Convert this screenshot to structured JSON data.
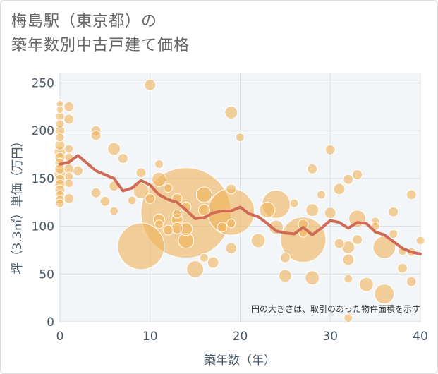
{
  "title_lines": [
    "梅島駅（東京都）の",
    "築年数別中古戸建て価格"
  ],
  "chart_data": {
    "type": "scatter",
    "title": "梅島駅（東京都）の築年数別中古戸建て価格",
    "xlabel": "築年数（年）",
    "ylabel": "坪（3.3㎡）単価（万円）",
    "xlim": [
      0,
      40
    ],
    "ylim": [
      0,
      260
    ],
    "xticks": [
      0,
      10,
      20,
      30,
      40
    ],
    "yticks": [
      0,
      50,
      100,
      150,
      200,
      250
    ],
    "grid": true,
    "note": "円の大きさは、取引のあった物件面積を示す",
    "colors": {
      "bubble": "#f0b45a",
      "line": "#d06a55",
      "plot_bg": "#f3f6f8",
      "grid": "#d6dde3"
    },
    "points": [
      {
        "x": 0,
        "y": 228,
        "s": 5
      },
      {
        "x": 0,
        "y": 222,
        "s": 5
      },
      {
        "x": 0,
        "y": 215,
        "s": 6
      },
      {
        "x": 0,
        "y": 207,
        "s": 6
      },
      {
        "x": 0,
        "y": 200,
        "s": 7
      },
      {
        "x": 0,
        "y": 193,
        "s": 6
      },
      {
        "x": 0,
        "y": 185,
        "s": 7
      },
      {
        "x": 0,
        "y": 178,
        "s": 8
      },
      {
        "x": 0,
        "y": 172,
        "s": 7
      },
      {
        "x": 0,
        "y": 166,
        "s": 7
      },
      {
        "x": 0,
        "y": 160,
        "s": 7
      },
      {
        "x": 0,
        "y": 155,
        "s": 8
      },
      {
        "x": 0,
        "y": 149,
        "s": 7
      },
      {
        "x": 0,
        "y": 144,
        "s": 7
      },
      {
        "x": 0,
        "y": 138,
        "s": 7
      },
      {
        "x": 0,
        "y": 133,
        "s": 6
      },
      {
        "x": 0,
        "y": 128,
        "s": 6
      },
      {
        "x": 0,
        "y": 124,
        "s": 6
      },
      {
        "x": 1,
        "y": 225,
        "s": 7
      },
      {
        "x": 1,
        "y": 212,
        "s": 7
      },
      {
        "x": 1,
        "y": 181,
        "s": 6
      },
      {
        "x": 1,
        "y": 172,
        "s": 6
      },
      {
        "x": 1,
        "y": 160,
        "s": 7
      },
      {
        "x": 1,
        "y": 152,
        "s": 6
      },
      {
        "x": 1,
        "y": 145,
        "s": 6
      },
      {
        "x": 1,
        "y": 129,
        "s": 7
      },
      {
        "x": 2,
        "y": 158,
        "s": 7
      },
      {
        "x": 4,
        "y": 200,
        "s": 7
      },
      {
        "x": 4,
        "y": 195,
        "s": 7
      },
      {
        "x": 4,
        "y": 135,
        "s": 7
      },
      {
        "x": 5,
        "y": 126,
        "s": 7
      },
      {
        "x": 6,
        "y": 181,
        "s": 9
      },
      {
        "x": 6,
        "y": 142,
        "s": 7
      },
      {
        "x": 6,
        "y": 116,
        "s": 6
      },
      {
        "x": 7,
        "y": 171,
        "s": 7
      },
      {
        "x": 8,
        "y": 127,
        "s": 6
      },
      {
        "x": 9,
        "y": 156,
        "s": 7
      },
      {
        "x": 9,
        "y": 137,
        "s": 11
      },
      {
        "x": 9,
        "y": 79,
        "s": 33
      },
      {
        "x": 10,
        "y": 248,
        "s": 8
      },
      {
        "x": 10,
        "y": 129,
        "s": 7
      },
      {
        "x": 11,
        "y": 165,
        "s": 6
      },
      {
        "x": 11,
        "y": 149,
        "s": 10
      },
      {
        "x": 11,
        "y": 107,
        "s": 8
      },
      {
        "x": 11,
        "y": 102,
        "s": 6
      },
      {
        "x": 12,
        "y": 140,
        "s": 6
      },
      {
        "x": 12,
        "y": 96,
        "s": 7
      },
      {
        "x": 13,
        "y": 129,
        "s": 7
      },
      {
        "x": 13,
        "y": 113,
        "s": 6
      },
      {
        "x": 13,
        "y": 107,
        "s": 8
      },
      {
        "x": 13,
        "y": 98,
        "s": 8
      },
      {
        "x": 14,
        "y": 114,
        "s": 64
      },
      {
        "x": 14,
        "y": 120,
        "s": 7
      },
      {
        "x": 14,
        "y": 97,
        "s": 9
      },
      {
        "x": 14,
        "y": 85,
        "s": 11
      },
      {
        "x": 15,
        "y": 55,
        "s": 12
      },
      {
        "x": 16,
        "y": 133,
        "s": 11
      },
      {
        "x": 16,
        "y": 117,
        "s": 8
      },
      {
        "x": 16,
        "y": 67,
        "s": 6
      },
      {
        "x": 17,
        "y": 62,
        "s": 8
      },
      {
        "x": 18,
        "y": 99,
        "s": 7
      },
      {
        "x": 19,
        "y": 219,
        "s": 9
      },
      {
        "x": 19,
        "y": 139,
        "s": 7
      },
      {
        "x": 19,
        "y": 115,
        "s": 33
      },
      {
        "x": 19,
        "y": 103,
        "s": 6
      },
      {
        "x": 19,
        "y": 77,
        "s": 8
      },
      {
        "x": 20,
        "y": 193,
        "s": 6
      },
      {
        "x": 22,
        "y": 85,
        "s": 10
      },
      {
        "x": 23,
        "y": 117,
        "s": 11
      },
      {
        "x": 24,
        "y": 123,
        "s": 20
      },
      {
        "x": 24,
        "y": 99,
        "s": 10
      },
      {
        "x": 25,
        "y": 67,
        "s": 7
      },
      {
        "x": 25,
        "y": 48,
        "s": 9
      },
      {
        "x": 26,
        "y": 124,
        "s": 6
      },
      {
        "x": 27,
        "y": 86,
        "s": 32
      },
      {
        "x": 27,
        "y": 102,
        "s": 7
      },
      {
        "x": 27,
        "y": 93,
        "s": 6
      },
      {
        "x": 28,
        "y": 160,
        "s": 7
      },
      {
        "x": 28,
        "y": 117,
        "s": 9
      },
      {
        "x": 28,
        "y": 46,
        "s": 10
      },
      {
        "x": 29,
        "y": 133,
        "s": 6
      },
      {
        "x": 30,
        "y": 180,
        "s": 7
      },
      {
        "x": 30,
        "y": 114,
        "s": 8
      },
      {
        "x": 31,
        "y": 139,
        "s": 8
      },
      {
        "x": 31,
        "y": 82,
        "s": 7
      },
      {
        "x": 32,
        "y": 149,
        "s": 7
      },
      {
        "x": 32,
        "y": 78,
        "s": 9
      },
      {
        "x": 32,
        "y": 65,
        "s": 8
      },
      {
        "x": 32,
        "y": 45,
        "s": 6
      },
      {
        "x": 32,
        "y": 4,
        "s": 6
      },
      {
        "x": 33,
        "y": 154,
        "s": 7
      },
      {
        "x": 33,
        "y": 108,
        "s": 12
      },
      {
        "x": 33,
        "y": 86,
        "s": 7
      },
      {
        "x": 34,
        "y": 39,
        "s": 10
      },
      {
        "x": 35,
        "y": 105,
        "s": 6
      },
      {
        "x": 35,
        "y": 100,
        "s": 6
      },
      {
        "x": 36,
        "y": 78,
        "s": 16
      },
      {
        "x": 36,
        "y": 29,
        "s": 14
      },
      {
        "x": 37,
        "y": 115,
        "s": 7
      },
      {
        "x": 37,
        "y": 92,
        "s": 6
      },
      {
        "x": 38,
        "y": 74,
        "s": 6
      },
      {
        "x": 38,
        "y": 56,
        "s": 7
      },
      {
        "x": 39,
        "y": 133,
        "s": 7
      },
      {
        "x": 39,
        "y": 73,
        "s": 6
      },
      {
        "x": 39,
        "y": 42,
        "s": 7
      },
      {
        "x": 40,
        "y": 85,
        "s": 6
      }
    ],
    "trend": {
      "x": [
        0,
        1,
        2,
        3,
        4,
        5,
        6,
        7,
        8,
        9,
        10,
        11,
        12,
        13,
        14,
        15,
        16,
        17,
        18,
        19,
        20,
        21,
        22,
        23,
        24,
        25,
        26,
        27,
        28,
        29,
        30,
        31,
        32,
        33,
        34,
        35,
        36,
        37,
        38,
        39,
        40
      ],
      "y": [
        165,
        167,
        174,
        166,
        158,
        154,
        150,
        137,
        140,
        148,
        143,
        133,
        128,
        125,
        117,
        108,
        109,
        114,
        116,
        116,
        120,
        113,
        110,
        103,
        95,
        93,
        92,
        99,
        91,
        98,
        106,
        104,
        98,
        104,
        103,
        94,
        91,
        84,
        77,
        73,
        71
      ]
    }
  }
}
